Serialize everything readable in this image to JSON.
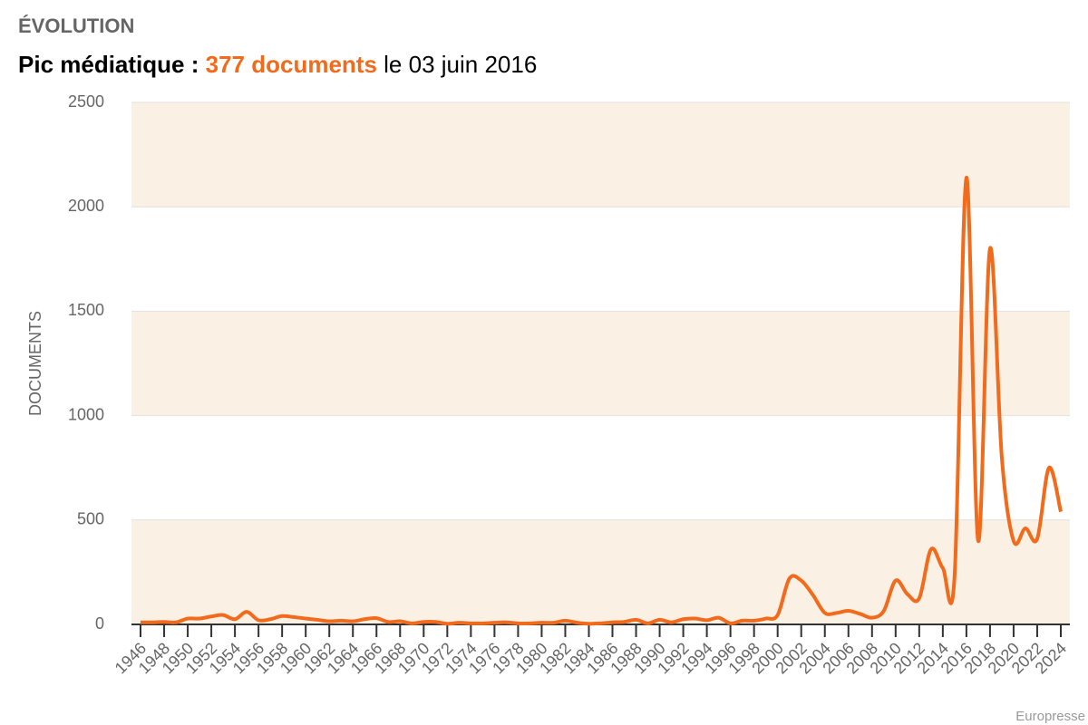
{
  "chart_data": {
    "type": "line",
    "title": "ÉVOLUTION",
    "subtitle": {
      "lead": "Pic médiatique :",
      "highlight": "377 documents",
      "tail": "le 03 juin 2016"
    },
    "y_label": "DOCUMENTS",
    "source": "Europresse",
    "x": [
      1946,
      1947,
      1948,
      1949,
      1950,
      1951,
      1952,
      1953,
      1954,
      1955,
      1956,
      1957,
      1958,
      1959,
      1960,
      1961,
      1962,
      1963,
      1964,
      1965,
      1966,
      1967,
      1968,
      1969,
      1970,
      1971,
      1972,
      1973,
      1974,
      1975,
      1976,
      1977,
      1978,
      1979,
      1980,
      1981,
      1982,
      1983,
      1984,
      1985,
      1986,
      1987,
      1988,
      1989,
      1990,
      1991,
      1992,
      1993,
      1994,
      1995,
      1996,
      1997,
      1998,
      1999,
      2000,
      2001,
      2002,
      2003,
      2004,
      2005,
      2006,
      2007,
      2008,
      2009,
      2010,
      2011,
      2012,
      2013,
      2014,
      2015,
      2016,
      2017,
      2018,
      2019,
      2020,
      2021,
      2022,
      2023,
      2024
    ],
    "series": [
      {
        "name": "DOCUMENTS",
        "color": "#f26a1b",
        "values": [
          10,
          10,
          12,
          10,
          28,
          28,
          38,
          45,
          25,
          60,
          20,
          25,
          40,
          35,
          28,
          22,
          15,
          18,
          15,
          25,
          30,
          12,
          15,
          5,
          12,
          12,
          3,
          8,
          5,
          5,
          8,
          10,
          5,
          5,
          8,
          8,
          18,
          8,
          3,
          5,
          10,
          12,
          22,
          5,
          22,
          10,
          25,
          28,
          20,
          32,
          5,
          18,
          18,
          28,
          45,
          220,
          210,
          140,
          55,
          55,
          65,
          50,
          32,
          65,
          210,
          145,
          125,
          360,
          270,
          235,
          2140,
          400,
          1800,
          800,
          400,
          460,
          410,
          750,
          540
        ]
      }
    ],
    "xlim": [
      1946,
      2024
    ],
    "xticks": [
      1946,
      1948,
      1950,
      1952,
      1954,
      1956,
      1958,
      1960,
      1962,
      1964,
      1966,
      1968,
      1970,
      1972,
      1974,
      1976,
      1978,
      1980,
      1982,
      1984,
      1986,
      1988,
      1990,
      1992,
      1994,
      1996,
      1998,
      2000,
      2002,
      2004,
      2006,
      2008,
      2010,
      2012,
      2014,
      2016,
      2018,
      2020,
      2022,
      2024
    ],
    "ylim": [
      0,
      2500
    ],
    "yticks": [
      0,
      500,
      1000,
      1500,
      2000,
      2500
    ],
    "band_color": "#fbf0e4",
    "grid": true
  }
}
